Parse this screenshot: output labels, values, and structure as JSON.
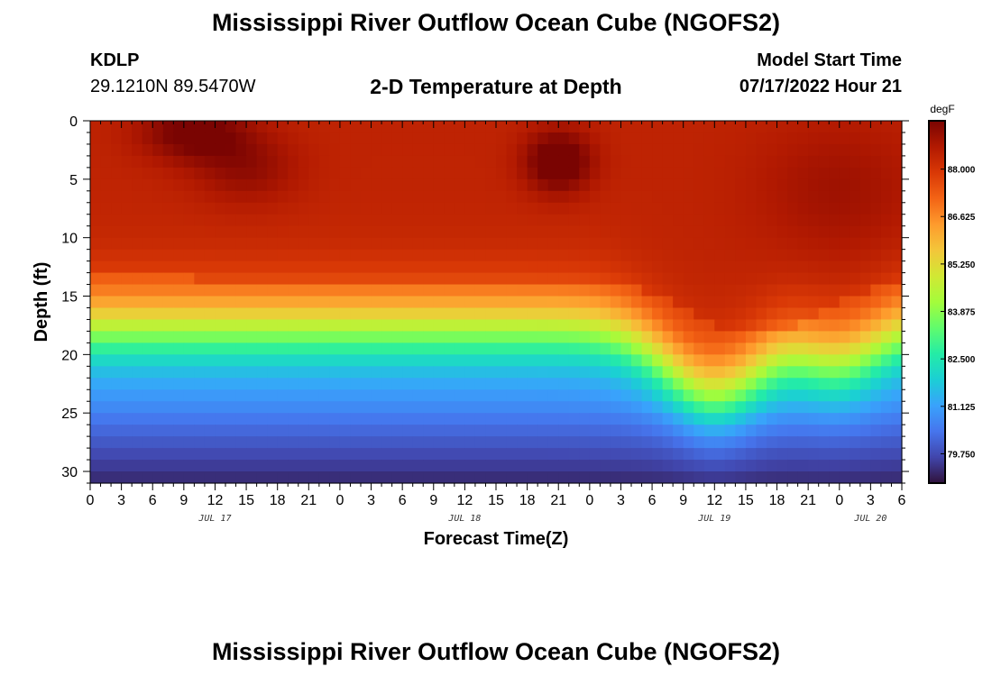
{
  "header": {
    "title": "Mississippi River Outflow Ocean Cube (NGOFS2)",
    "station_id": "KDLP",
    "station_coords": "29.1210N  89.5470W",
    "subtitle": "2-D Temperature at Depth",
    "start_label": "Model Start Time",
    "start_value": "07/17/2022 Hour 21"
  },
  "footer": {
    "title": "Mississippi River Outflow Ocean Cube (NGOFS2)"
  },
  "chart_data": {
    "type": "heatmap",
    "title": "2-D Temperature at Depth",
    "xlabel": "Forecast Time(Z)",
    "ylabel": "Depth (ft)",
    "x_unit": "forecast hour (0 = 07/17/2022 00Z)",
    "xlim": [
      0,
      78
    ],
    "ylim": [
      31,
      0
    ],
    "x_ticks": [
      0,
      3,
      6,
      9,
      12,
      15,
      18,
      21,
      24,
      27,
      30,
      33,
      36,
      39,
      42,
      45,
      48,
      51,
      54,
      57,
      60,
      63,
      66,
      69,
      72,
      75,
      78
    ],
    "x_tick_labels": [
      "0",
      "3",
      "6",
      "9",
      "12",
      "15",
      "18",
      "21",
      "0",
      "3",
      "6",
      "9",
      "12",
      "15",
      "18",
      "21",
      "0",
      "3",
      "6",
      "9",
      "12",
      "15",
      "18",
      "21",
      "0",
      "3",
      "6"
    ],
    "date_labels": [
      {
        "text": "JUL 17",
        "x": 12
      },
      {
        "text": "JUL 18",
        "x": 36
      },
      {
        "text": "JUL 19",
        "x": 60
      },
      {
        "text": "JUL 20",
        "x": 75
      }
    ],
    "y_ticks": [
      0,
      5,
      10,
      15,
      20,
      25,
      30
    ],
    "y_tick_labels": [
      "0",
      "5",
      "10",
      "15",
      "20",
      "25",
      "30"
    ],
    "colorbar": {
      "unit": "degF",
      "min": 78.9,
      "max": 89.4,
      "ticks": [
        88.0,
        86.625,
        85.25,
        83.875,
        82.5,
        81.125,
        79.75
      ],
      "tick_labels": [
        "88.000",
        "86.625",
        "85.250",
        "83.875",
        "82.500",
        "81.125",
        "79.750"
      ],
      "colors": [
        "#30123b",
        "#4145ab",
        "#4675ed",
        "#39a2fc",
        "#1bcfd4",
        "#24eca6",
        "#61fc6c",
        "#a4fc3b",
        "#d1e834",
        "#f3c63a",
        "#fe9b2d",
        "#f36315",
        "#d93806",
        "#b11901",
        "#7a0402"
      ]
    },
    "description_of_field": "Warm surface layer (~87-89 degF) down to ~10-15 ft, thermocline to ~80 degF at 30 ft; thermocline deepens around forecast hours 57-72; warm cores near hour 10 at 0-3 ft and hour 45 at 2-5 ft."
  }
}
